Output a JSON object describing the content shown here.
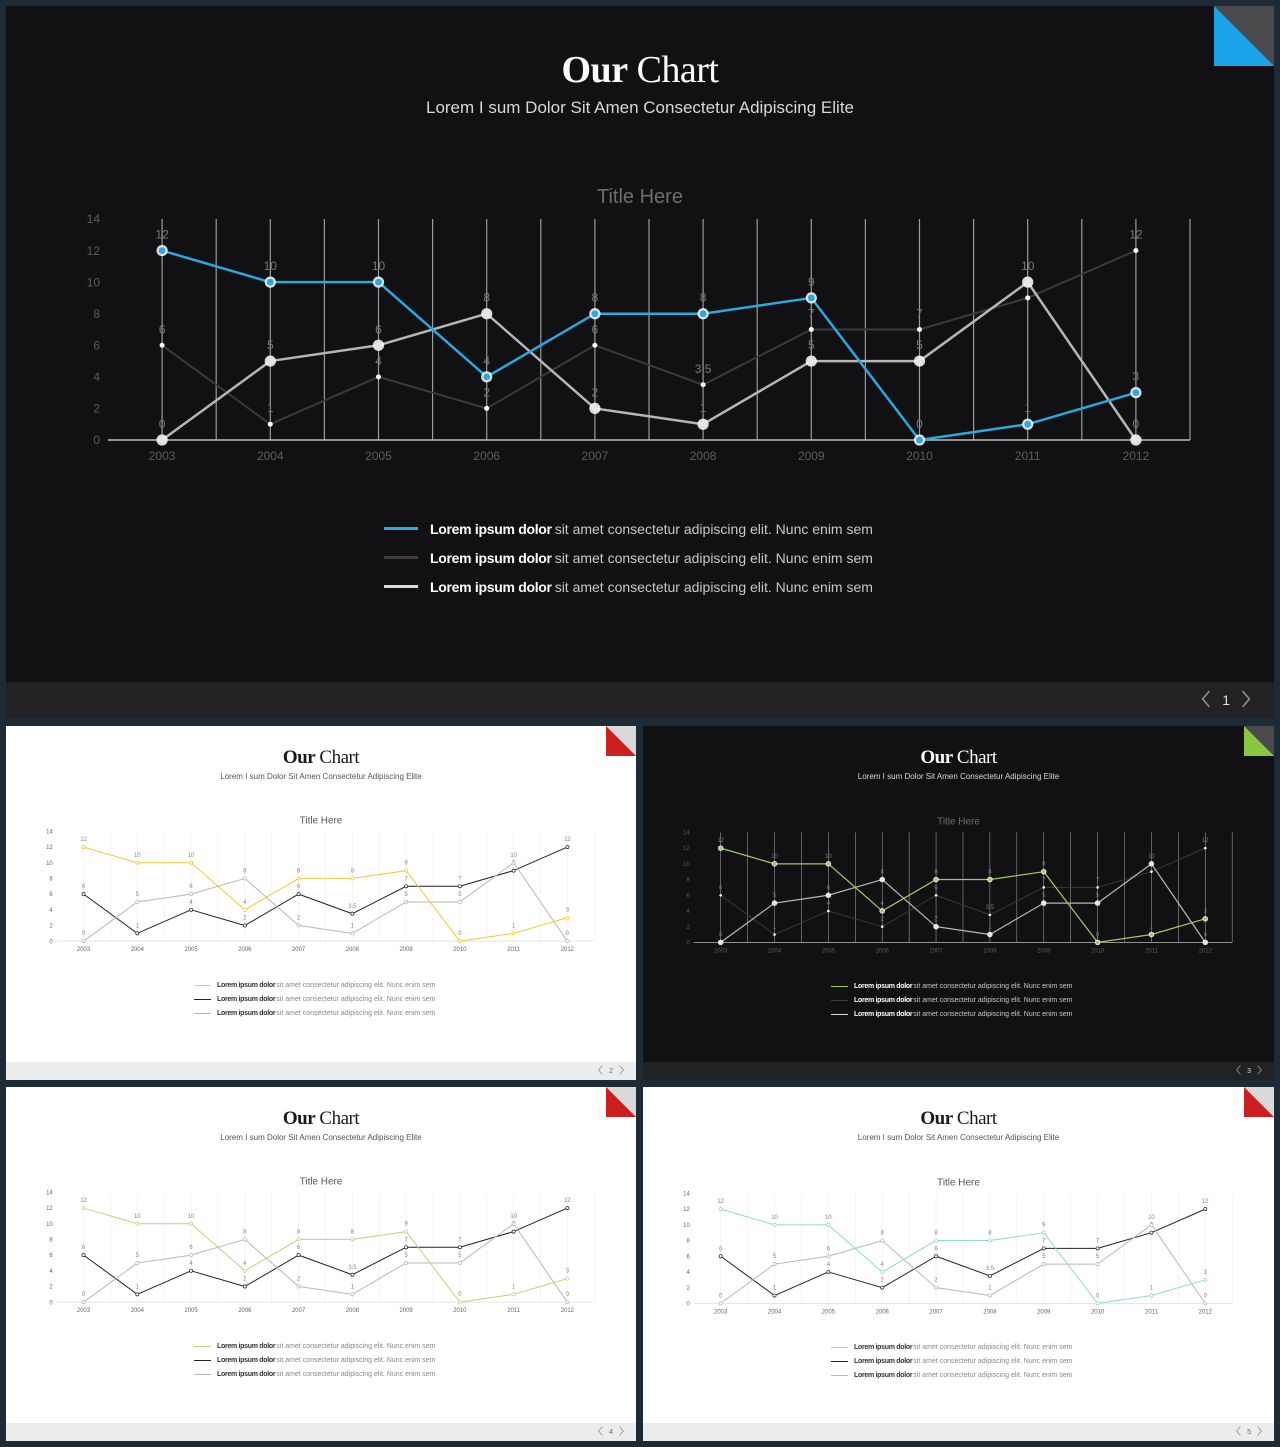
{
  "slides": [
    {
      "id": "s1",
      "theme": "dark",
      "accent": "#2aa8e0",
      "corner_color": "#1aa3e8",
      "title_bold": "Our",
      "title_light": "Chart",
      "subtitle": "Lorem I sum Dolor Sit Amen Consectetur Adipiscing Elite",
      "chart_title": "Title Here",
      "page_number": "1",
      "legend": [
        {
          "bold": "Lorem ipsum dolor",
          "text": "sit amet consectetur adipiscing elit. Nunc enim sem"
        },
        {
          "bold": "Lorem ipsum dolor",
          "text": "sit amet consectetur adipiscing elit. Nunc enim sem"
        },
        {
          "bold": "Lorem ipsum dolor",
          "text": "sit amet consectetur adipiscing elit. Nunc enim sem"
        }
      ]
    },
    {
      "id": "s2",
      "theme": "light",
      "accent": "#f2c830",
      "corner_color": "#cc1f1f",
      "title_bold": "Our",
      "title_light": "Chart",
      "subtitle": "Lorem I sum Dolor Sit Amen Consectetur Adipiscing Elite",
      "chart_title": "Title Here",
      "page_number": "2",
      "legend": [
        {
          "bold": "Lorem ipsum dolor",
          "text": "sit amet consectetur adipiscing elit. Nunc enim sem"
        },
        {
          "bold": "Lorem ipsum dolor",
          "text": "sit amet consectetur adipiscing elit. Nunc enim sem"
        },
        {
          "bold": "Lorem ipsum dolor",
          "text": "sit amet consectetur adipiscing elit. Nunc enim sem"
        }
      ]
    },
    {
      "id": "s3",
      "theme": "dark",
      "accent": "#9ccc5a",
      "corner_color": "#8cc63f",
      "title_bold": "Our",
      "title_light": "Chart",
      "subtitle": "Lorem I sum Dolor Sit Amen Consectetur Adipiscing Elite",
      "chart_title": "Title Here",
      "page_number": "3",
      "legend": [
        {
          "bold": "Lorem ipsum dolor",
          "text": "sit amet consectetur adipiscing elit. Nunc enim sem"
        },
        {
          "bold": "Lorem ipsum dolor",
          "text": "sit amet consectetur adipiscing elit. Nunc enim sem"
        },
        {
          "bold": "Lorem ipsum dolor",
          "text": "sit amet consectetur adipiscing elit. Nunc enim sem"
        }
      ]
    },
    {
      "id": "s4",
      "theme": "light",
      "accent": "#c5cf7a",
      "corner_color": "#cc1f1f",
      "title_bold": "Our",
      "title_light": "Chart",
      "subtitle": "Lorem I sum Dolor Sit Amen Consectetur Adipiscing Elite",
      "chart_title": "Title Here",
      "page_number": "4",
      "legend": [
        {
          "bold": "Lorem ipsum dolor",
          "text": "sit amet consectetur adipiscing elit. Nunc enim sem"
        },
        {
          "bold": "Lorem ipsum dolor",
          "text": "sit amet consectetur adipiscing elit. Nunc enim sem"
        },
        {
          "bold": "Lorem ipsum dolor",
          "text": "sit amet consectetur adipiscing elit. Nunc enim sem"
        }
      ]
    },
    {
      "id": "s5",
      "theme": "light",
      "accent": "#8fd8d8",
      "corner_color": "#cc1f1f",
      "title_bold": "Our",
      "title_light": "Chart",
      "subtitle": "Lorem I sum Dolor Sit Amen Consectetur Adipiscing Elite",
      "chart_title": "Title Here",
      "page_number": "5",
      "legend": [
        {
          "bold": "Lorem ipsum dolor",
          "text": "sit amet consectetur adipiscing elit. Nunc enim sem"
        },
        {
          "bold": "Lorem ipsum dolor",
          "text": "sit amet consectetur adipiscing elit. Nunc enim sem"
        },
        {
          "bold": "Lorem ipsum dolor",
          "text": "sit amet consectetur adipiscing elit. Nunc enim sem"
        }
      ]
    }
  ],
  "chart_data": {
    "type": "line",
    "title": "Title Here",
    "x": [
      "2003",
      "2004",
      "2005",
      "2006",
      "2007",
      "2008",
      "2009",
      "2010",
      "2011",
      "2012"
    ],
    "ylim": [
      0,
      14
    ],
    "yticks": [
      0,
      2,
      4,
      6,
      8,
      10,
      12,
      14
    ],
    "grid": "vertical",
    "series": [
      {
        "values": [
          12,
          10,
          10,
          4,
          8,
          8,
          9,
          0,
          1,
          3
        ],
        "labels": [
          "12",
          "10",
          "10",
          "4",
          "8",
          "8",
          "9",
          "0",
          "1",
          "3"
        ]
      },
      {
        "values": [
          6,
          1,
          4,
          2,
          6,
          3.5,
          7,
          7,
          9,
          12
        ],
        "labels": [
          "6",
          "1",
          "4",
          "2",
          "6",
          "3.5",
          "7",
          "7",
          "9",
          "12"
        ]
      },
      {
        "values": [
          0,
          5,
          6,
          8,
          2,
          1,
          5,
          5,
          10,
          0
        ],
        "labels": [
          "0",
          "5",
          "6",
          "8",
          "2",
          "1",
          "5",
          "5",
          "10",
          "0"
        ]
      }
    ]
  }
}
